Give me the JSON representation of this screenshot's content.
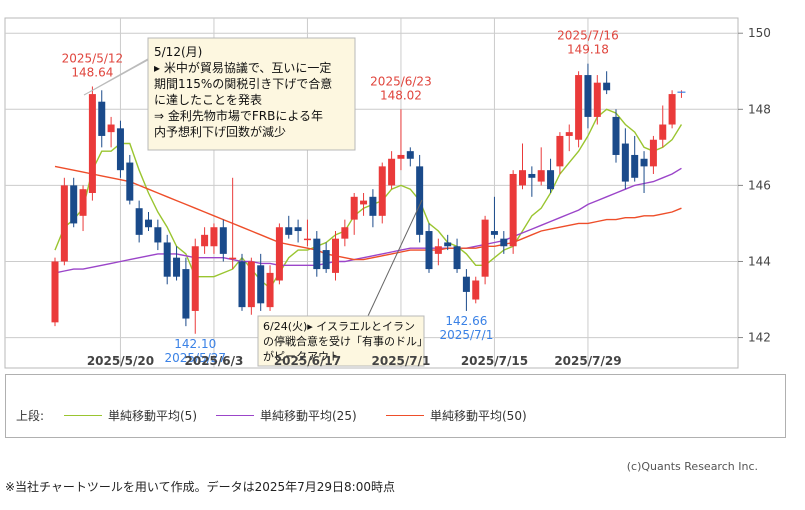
{
  "chart_data": {
    "type": "candlestick",
    "x_ticks": [
      "2025/5/20",
      "2025/6/3",
      "2025/6/17",
      "2025/7/1",
      "2025/7/15",
      "2025/7/29"
    ],
    "y_ticks": [
      "150",
      "148",
      "146",
      "144",
      "142"
    ],
    "ylim": [
      141.2,
      150.4
    ],
    "grid": true,
    "candles": [
      {
        "o": 142.4,
        "h": 144.1,
        "l": 142.3,
        "c": 144.0
      },
      {
        "o": 144.0,
        "h": 146.2,
        "l": 143.9,
        "c": 146.0
      },
      {
        "o": 146.0,
        "h": 146.2,
        "l": 144.9,
        "c": 145.0
      },
      {
        "o": 145.2,
        "h": 146.0,
        "l": 144.8,
        "c": 145.9
      },
      {
        "o": 145.8,
        "h": 148.6,
        "l": 145.6,
        "c": 148.4
      },
      {
        "o": 148.2,
        "h": 148.5,
        "l": 147.0,
        "c": 147.3
      },
      {
        "o": 147.4,
        "h": 147.8,
        "l": 147.0,
        "c": 147.6
      },
      {
        "o": 147.5,
        "h": 147.7,
        "l": 146.2,
        "c": 146.4
      },
      {
        "o": 146.6,
        "h": 146.8,
        "l": 145.5,
        "c": 145.6
      },
      {
        "o": 145.4,
        "h": 145.6,
        "l": 144.5,
        "c": 144.7
      },
      {
        "o": 145.1,
        "h": 145.3,
        "l": 144.8,
        "c": 144.9
      },
      {
        "o": 144.9,
        "h": 145.1,
        "l": 144.3,
        "c": 144.5
      },
      {
        "o": 144.5,
        "h": 144.7,
        "l": 143.4,
        "c": 143.6
      },
      {
        "o": 144.1,
        "h": 144.4,
        "l": 143.5,
        "c": 143.6
      },
      {
        "o": 143.8,
        "h": 144.1,
        "l": 142.3,
        "c": 142.5
      },
      {
        "o": 142.7,
        "h": 144.6,
        "l": 142.1,
        "c": 144.4
      },
      {
        "o": 144.4,
        "h": 144.9,
        "l": 144.2,
        "c": 144.7
      },
      {
        "o": 144.4,
        "h": 145.0,
        "l": 144.2,
        "c": 144.9
      },
      {
        "o": 144.9,
        "h": 145.1,
        "l": 144.0,
        "c": 144.2
      },
      {
        "o": 144.1,
        "h": 146.2,
        "l": 143.8,
        "c": 144.1
      },
      {
        "o": 144.0,
        "h": 144.2,
        "l": 142.7,
        "c": 142.8
      },
      {
        "o": 142.8,
        "h": 144.1,
        "l": 142.6,
        "c": 144.0
      },
      {
        "o": 143.9,
        "h": 144.2,
        "l": 142.7,
        "c": 142.9
      },
      {
        "o": 142.8,
        "h": 143.9,
        "l": 142.7,
        "c": 143.7
      },
      {
        "o": 143.5,
        "h": 145.0,
        "l": 143.4,
        "c": 144.9
      },
      {
        "o": 144.9,
        "h": 145.2,
        "l": 144.6,
        "c": 144.7
      },
      {
        "o": 144.9,
        "h": 145.1,
        "l": 144.5,
        "c": 144.8
      },
      {
        "o": 144.6,
        "h": 145.1,
        "l": 144.4,
        "c": 144.6
      },
      {
        "o": 144.6,
        "h": 144.8,
        "l": 143.6,
        "c": 143.8
      },
      {
        "o": 144.3,
        "h": 144.5,
        "l": 143.7,
        "c": 143.8
      },
      {
        "o": 143.7,
        "h": 144.8,
        "l": 143.5,
        "c": 144.6
      },
      {
        "o": 144.6,
        "h": 145.1,
        "l": 144.4,
        "c": 144.9
      },
      {
        "o": 145.1,
        "h": 145.8,
        "l": 144.7,
        "c": 145.7
      },
      {
        "o": 145.5,
        "h": 145.8,
        "l": 145.2,
        "c": 145.6
      },
      {
        "o": 145.7,
        "h": 145.9,
        "l": 144.9,
        "c": 145.2
      },
      {
        "o": 145.2,
        "h": 146.6,
        "l": 145.0,
        "c": 146.5
      },
      {
        "o": 146.0,
        "h": 146.9,
        "l": 145.9,
        "c": 146.7
      },
      {
        "o": 146.7,
        "h": 148.0,
        "l": 146.4,
        "c": 146.8
      },
      {
        "o": 146.9,
        "h": 147.0,
        "l": 146.5,
        "c": 146.7
      },
      {
        "o": 146.5,
        "h": 146.8,
        "l": 144.5,
        "c": 144.7
      },
      {
        "o": 144.8,
        "h": 145.0,
        "l": 143.7,
        "c": 143.8
      },
      {
        "o": 144.2,
        "h": 144.6,
        "l": 143.9,
        "c": 144.4
      },
      {
        "o": 144.5,
        "h": 144.7,
        "l": 144.3,
        "c": 144.4
      },
      {
        "o": 144.4,
        "h": 144.6,
        "l": 143.7,
        "c": 143.8
      },
      {
        "o": 143.6,
        "h": 143.8,
        "l": 142.7,
        "c": 143.2
      },
      {
        "o": 143.0,
        "h": 143.6,
        "l": 142.9,
        "c": 143.5
      },
      {
        "o": 143.6,
        "h": 145.2,
        "l": 143.4,
        "c": 145.1
      },
      {
        "o": 144.8,
        "h": 145.7,
        "l": 144.6,
        "c": 144.7
      },
      {
        "o": 144.6,
        "h": 144.8,
        "l": 144.2,
        "c": 144.4
      },
      {
        "o": 144.4,
        "h": 146.4,
        "l": 144.2,
        "c": 146.3
      },
      {
        "o": 146.0,
        "h": 147.1,
        "l": 145.9,
        "c": 146.4
      },
      {
        "o": 146.3,
        "h": 146.5,
        "l": 145.7,
        "c": 146.2
      },
      {
        "o": 146.1,
        "h": 147.0,
        "l": 146.0,
        "c": 146.4
      },
      {
        "o": 146.4,
        "h": 146.7,
        "l": 145.8,
        "c": 145.9
      },
      {
        "o": 146.5,
        "h": 147.4,
        "l": 146.3,
        "c": 147.3
      },
      {
        "o": 147.3,
        "h": 147.6,
        "l": 146.9,
        "c": 147.4
      },
      {
        "o": 147.2,
        "h": 149.0,
        "l": 147.0,
        "c": 148.9
      },
      {
        "o": 148.9,
        "h": 149.2,
        "l": 147.5,
        "c": 147.8
      },
      {
        "o": 147.8,
        "h": 148.9,
        "l": 147.6,
        "c": 148.7
      },
      {
        "o": 148.7,
        "h": 149.0,
        "l": 148.4,
        "c": 148.5
      },
      {
        "o": 147.8,
        "h": 148.0,
        "l": 146.6,
        "c": 146.8
      },
      {
        "o": 147.1,
        "h": 147.5,
        "l": 145.9,
        "c": 146.1
      },
      {
        "o": 146.8,
        "h": 147.3,
        "l": 146.1,
        "c": 146.2
      },
      {
        "o": 146.7,
        "h": 146.9,
        "l": 145.8,
        "c": 146.5
      },
      {
        "o": 146.5,
        "h": 147.3,
        "l": 146.3,
        "c": 147.2
      },
      {
        "o": 147.2,
        "h": 148.1,
        "l": 147.0,
        "c": 147.6
      },
      {
        "o": 147.6,
        "h": 148.5,
        "l": 147.5,
        "c": 148.4
      },
      {
        "o": 148.4,
        "h": 148.5,
        "l": 148.3,
        "c": 148.45
      }
    ],
    "series": [
      {
        "name": "単純移動平均(5)",
        "color": "#9ac530",
        "values": [
          144.3,
          144.9,
          145.1,
          145.4,
          146.4,
          146.9,
          146.9,
          147.1,
          147.1,
          146.4,
          145.8,
          145.3,
          144.9,
          144.4,
          144.2,
          143.6,
          143.6,
          143.6,
          143.7,
          143.8,
          144.1,
          143.8,
          143.5,
          143.3,
          143.7,
          144.1,
          144.3,
          144.3,
          144.4,
          144.5,
          144.7,
          144.8,
          145.2,
          145.4,
          145.5,
          145.6,
          145.9,
          146.0,
          145.9,
          145.6,
          145.0,
          144.8,
          144.5,
          144.4,
          144.2,
          143.9,
          143.9,
          144.1,
          144.3,
          144.4,
          144.8,
          145.2,
          145.4,
          145.8,
          146.3,
          146.6,
          146.9,
          147.3,
          147.8,
          148.0,
          147.9,
          147.6,
          147.4,
          147.0,
          146.9,
          147.0,
          147.2,
          147.6
        ]
      },
      {
        "name": "単純移動平均(25)",
        "color": "#9b45c9",
        "values": [
          143.7,
          143.75,
          143.8,
          143.8,
          143.85,
          143.9,
          143.95,
          144.0,
          144.05,
          144.1,
          144.15,
          144.2,
          144.2,
          144.2,
          144.15,
          144.1,
          144.1,
          144.1,
          144.1,
          144.05,
          144.0,
          144.0,
          143.95,
          143.95,
          143.9,
          143.9,
          143.9,
          143.9,
          143.9,
          143.95,
          144.0,
          144.0,
          144.05,
          144.1,
          144.15,
          144.2,
          144.25,
          144.3,
          144.35,
          144.35,
          144.35,
          144.35,
          144.35,
          144.35,
          144.35,
          144.4,
          144.45,
          144.5,
          144.55,
          144.65,
          144.75,
          144.85,
          144.95,
          145.05,
          145.15,
          145.25,
          145.35,
          145.5,
          145.6,
          145.7,
          145.8,
          145.9,
          146.0,
          146.05,
          146.1,
          146.2,
          146.3,
          146.45
        ]
      },
      {
        "name": "単純移動平均(50)",
        "color": "#ee4e2a",
        "values": [
          146.5,
          146.45,
          146.4,
          146.35,
          146.3,
          146.25,
          146.2,
          146.15,
          146.1,
          146.0,
          145.9,
          145.8,
          145.7,
          145.6,
          145.5,
          145.4,
          145.3,
          145.2,
          145.1,
          145.0,
          144.9,
          144.8,
          144.7,
          144.6,
          144.5,
          144.45,
          144.4,
          144.35,
          144.3,
          144.2,
          144.15,
          144.1,
          144.05,
          144.05,
          144.1,
          144.15,
          144.2,
          144.25,
          144.3,
          144.3,
          144.3,
          144.3,
          144.35,
          144.35,
          144.35,
          144.35,
          144.4,
          144.4,
          144.45,
          144.5,
          144.6,
          144.7,
          144.8,
          144.85,
          144.9,
          144.95,
          145.0,
          145.0,
          145.05,
          145.1,
          145.1,
          145.15,
          145.15,
          145.2,
          145.2,
          145.25,
          145.3,
          145.4
        ]
      }
    ],
    "annotations": [
      {
        "date": "2025/5/12",
        "value": "148.64",
        "color": "#e0453d",
        "where": "above",
        "candle": 4
      },
      {
        "date": "2025/5/27",
        "value": "142.10",
        "color": "#3b82e6",
        "where": "below",
        "candle": 15
      },
      {
        "date": "2025/6/23",
        "value": "148.02",
        "color": "#e0453d",
        "where": "above",
        "candle": 37
      },
      {
        "date": "2025/7/1",
        "value": "142.66",
        "color": "#3b82e6",
        "where": "below",
        "candle": 44
      },
      {
        "date": "2025/7/16",
        "value": "149.18",
        "color": "#e0453d",
        "where": "above",
        "candle": 57
      }
    ],
    "callouts": [
      {
        "lines": [
          "5/12(月)",
          "▸  米中が貿易協議で、互いに一定",
          "期間115%の関税引き下げで合意",
          "に達したことを発表",
          "⇒  金利先物市場でFRBによる年",
          "内予想利下げ回数が減少"
        ]
      },
      {
        "lines": [
          "6/24(火)▸  イスラエルとイラン",
          "の停戦合意を受け「有事のドル」",
          "がピークアウト"
        ]
      }
    ],
    "colors": {
      "up": "#ea3a3a",
      "down": "#1a4a8a",
      "grid": "#cccccc",
      "callout_bg": "#fdf7e0"
    }
  },
  "legend": {
    "heading": "上段:",
    "items": [
      {
        "label": "単純移動平均(5)",
        "color": "#9ac530"
      },
      {
        "label": "単純移動平均(25)",
        "color": "#9b45c9"
      },
      {
        "label": "単純移動平均(50)",
        "color": "#ee4e2a"
      }
    ]
  },
  "credit": "(c)Quants Research Inc.",
  "footnote": "※当社チャートツールを用いて作成。データは2025年7月29日8:00時点"
}
